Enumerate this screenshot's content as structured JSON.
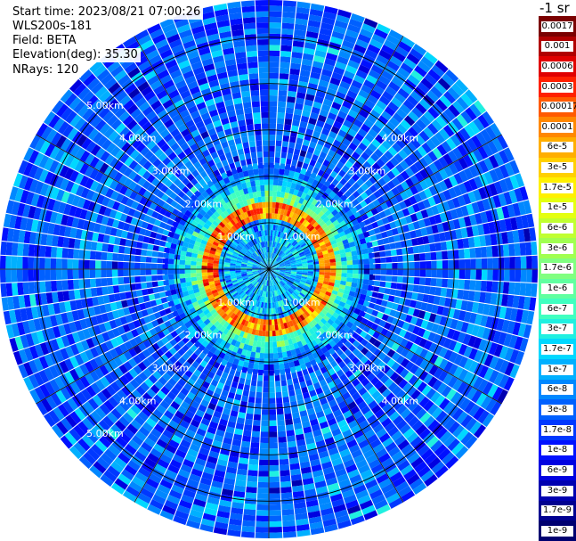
{
  "header": {
    "start_time": "Start time: 2023/08/21 07:00:26",
    "instrument": "WLS200s-181",
    "field": "Field: BETA",
    "elevation": "Elevation(deg): 35.30",
    "nrays": "NRays: 120"
  },
  "colorbar": {
    "unit_label": "-1 sr",
    "levels": [
      "0.0017",
      "0.001",
      "0.0006",
      "0.0003",
      "0.00017",
      "0.0001",
      "6e-5",
      "3e-5",
      "1.7e-5",
      "1e-5",
      "6e-6",
      "3e-6",
      "1.7e-6",
      "1e-6",
      "6e-7",
      "3e-7",
      "1.7e-7",
      "1e-7",
      "6e-8",
      "3e-8",
      "1.7e-8",
      "1e-8",
      "6e-9",
      "3e-9",
      "1.7e-9",
      "1e-9"
    ],
    "colors": [
      "#7a0000",
      "#b00000",
      "#e00000",
      "#ff2000",
      "#ff5a00",
      "#ff8800",
      "#ffae00",
      "#ffd000",
      "#fff000",
      "#e4ff10",
      "#c0ff30",
      "#a0ff50",
      "#80ff80",
      "#60ffa0",
      "#40ffc0",
      "#20f0e0",
      "#00d8ff",
      "#00b0ff",
      "#0088ff",
      "#0060ff",
      "#0038ff",
      "#0010ff",
      "#0000e0",
      "#0000b0",
      "#000090",
      "#000070"
    ]
  },
  "chart_data": {
    "type": "heatmap",
    "title": "",
    "projection": "polar (PPI scan)",
    "field": "BETA",
    "n_rays": 120,
    "range_rings_km": [
      1,
      2,
      3,
      4,
      5
    ],
    "ring_labels": [
      "1.00km",
      "2.00km",
      "3.00km",
      "4.00km",
      "5.00km"
    ],
    "max_range_km": 5.8,
    "azimuth_lines_deg": [
      0,
      30,
      60,
      90,
      120,
      150,
      180,
      210,
      240,
      270,
      300,
      330
    ],
    "color_scale": "log",
    "value_range": [
      1e-09,
      0.0017
    ],
    "features": {
      "near_field_level": 1e-07,
      "bright_ring_range_km": [
        1.15,
        1.4
      ],
      "bright_ring_level": 0.0001,
      "halo_range_km": [
        1.45,
        2.15
      ],
      "halo_level": 1.7e-06,
      "outer_level": 3e-08
    }
  }
}
